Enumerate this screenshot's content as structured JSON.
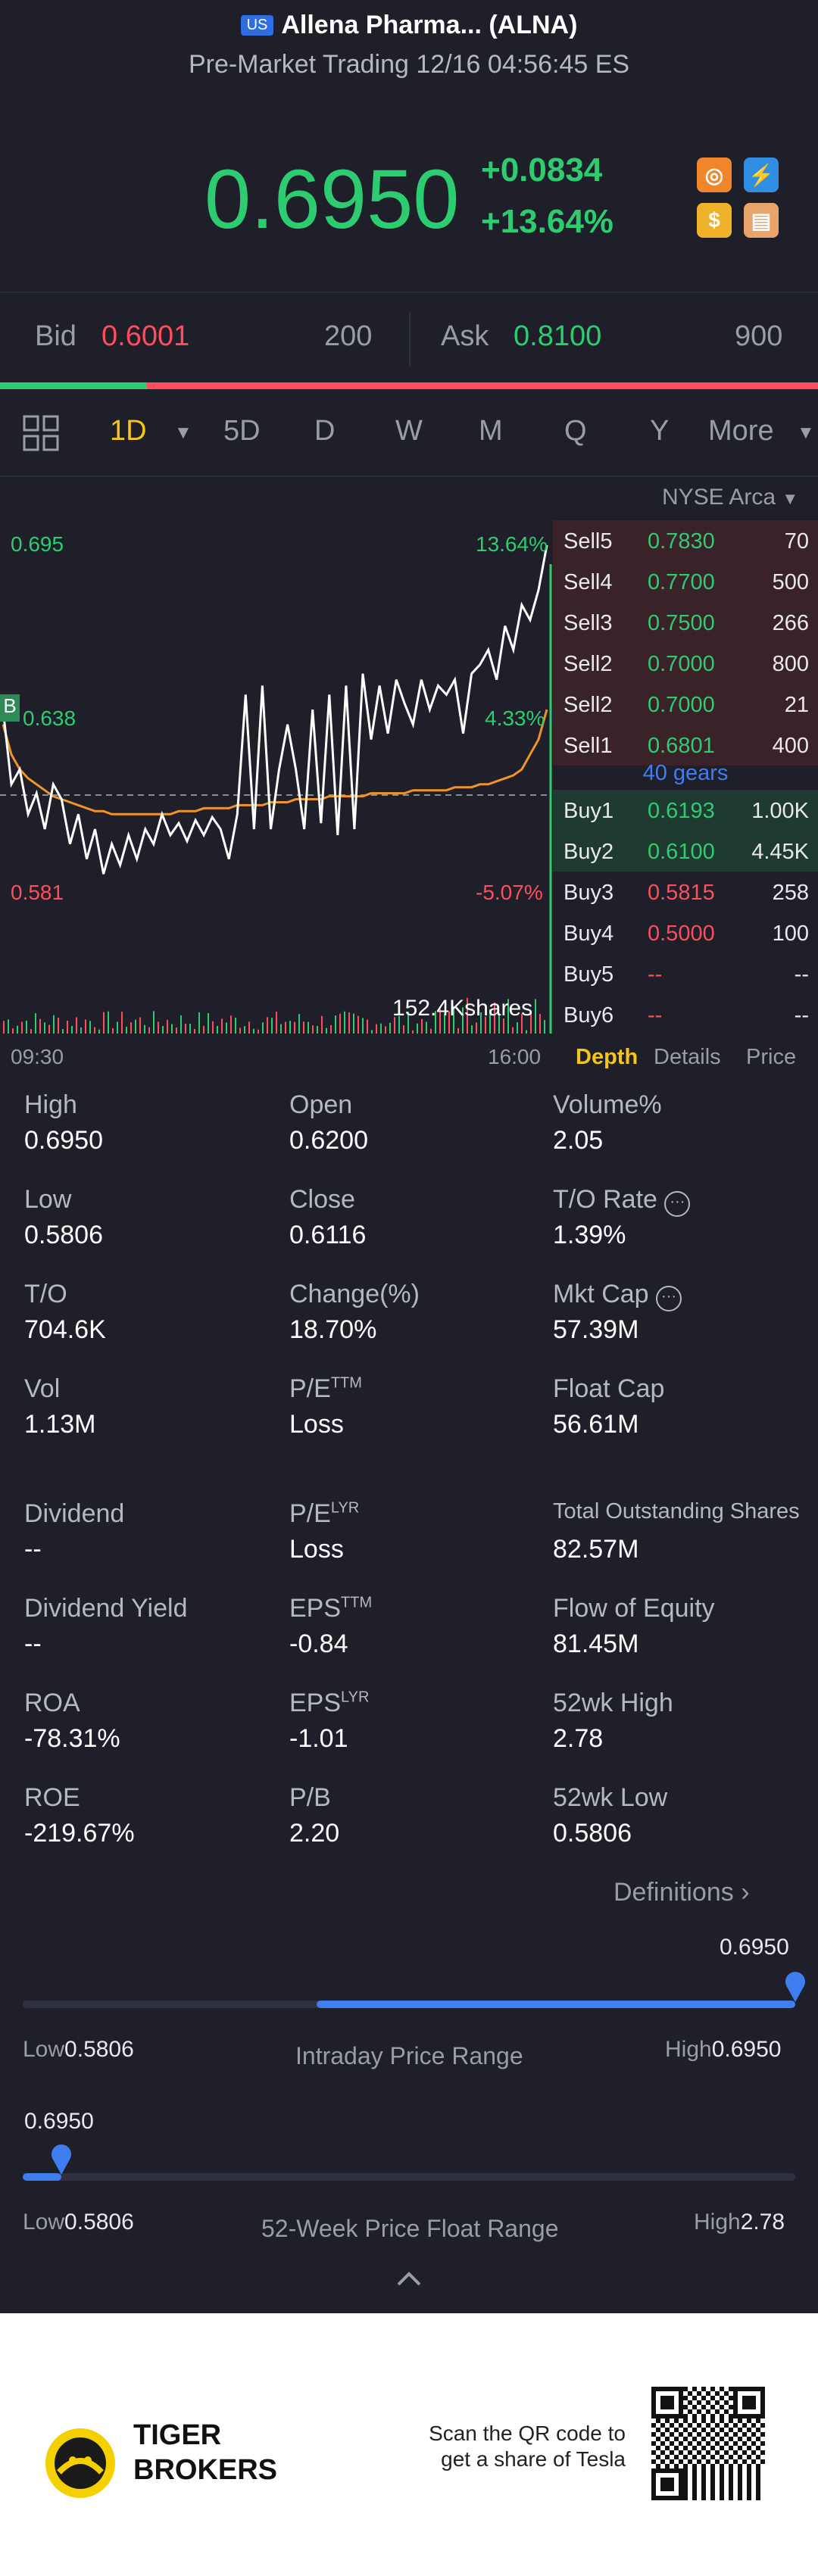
{
  "header": {
    "market_badge": "US",
    "title": "Allena Pharma... (ALNA)",
    "subtitle": "Pre-Market Trading 12/16 04:56:45 ES"
  },
  "quote": {
    "price": "0.6950",
    "change": "+0.0834",
    "change_pct": "+13.64%"
  },
  "bidask": {
    "bid_label": "Bid",
    "bid_price": "0.6001",
    "bid_size": "200",
    "ask_label": "Ask",
    "ask_price": "0.8100",
    "ask_size": "900",
    "bid_ratio": 0.18
  },
  "tabs": [
    "1D",
    "5D",
    "D",
    "W",
    "M",
    "Q",
    "Y",
    "More"
  ],
  "exchange": "NYSE Arca",
  "chart": {
    "price_high": "0.695",
    "pct_high": "13.64%",
    "price_mid": "0.638",
    "pct_mid": "4.33%",
    "price_low": "0.581",
    "pct_low": "-5.07%",
    "time_start": "09:30",
    "time_end": "16:00",
    "volume_label": "152.4Kshares",
    "marker": "B",
    "price_series": [
      0.64,
      0.615,
      0.62,
      0.605,
      0.612,
      0.6,
      0.615,
      0.61,
      0.595,
      0.605,
      0.59,
      0.6,
      0.585,
      0.595,
      0.588,
      0.598,
      0.59,
      0.6,
      0.595,
      0.605,
      0.598,
      0.602,
      0.596,
      0.603,
      0.598,
      0.604,
      0.6,
      0.59,
      0.605,
      0.645,
      0.6,
      0.648,
      0.6,
      0.62,
      0.635,
      0.62,
      0.6,
      0.64,
      0.602,
      0.645,
      0.598,
      0.648,
      0.6,
      0.652,
      0.63,
      0.648,
      0.632,
      0.65,
      0.642,
      0.635,
      0.65,
      0.64,
      0.648,
      0.645,
      0.65,
      0.632,
      0.652,
      0.655,
      0.66,
      0.65,
      0.668,
      0.66,
      0.675,
      0.67,
      0.68,
      0.695
    ],
    "avg_series": [
      0.635,
      0.625,
      0.62,
      0.617,
      0.615,
      0.613,
      0.611,
      0.61,
      0.609,
      0.608,
      0.607,
      0.606,
      0.606,
      0.605,
      0.605,
      0.605,
      0.605,
      0.605,
      0.605,
      0.605,
      0.605,
      0.606,
      0.606,
      0.606,
      0.607,
      0.607,
      0.607,
      0.607,
      0.608,
      0.608,
      0.608,
      0.608,
      0.609,
      0.609,
      0.609,
      0.61,
      0.61,
      0.61,
      0.61,
      0.611,
      0.611,
      0.611,
      0.611,
      0.611,
      0.612,
      0.612,
      0.612,
      0.612,
      0.612,
      0.613,
      0.613,
      0.613,
      0.613,
      0.613,
      0.614,
      0.614,
      0.614,
      0.615,
      0.615,
      0.616,
      0.617,
      0.618,
      0.62,
      0.625,
      0.63,
      0.64
    ]
  },
  "orderbook": {
    "sells": [
      {
        "label": "Sell5",
        "price": "0.7830",
        "size": "70"
      },
      {
        "label": "Sell4",
        "price": "0.7700",
        "size": "500"
      },
      {
        "label": "Sell3",
        "price": "0.7500",
        "size": "266"
      },
      {
        "label": "Sell2",
        "price": "0.7000",
        "size": "800"
      },
      {
        "label": "Sell2",
        "price": "0.7000",
        "size": "21"
      },
      {
        "label": "Sell1",
        "price": "0.6801",
        "size": "400"
      }
    ],
    "gears": "40 gears",
    "buys": [
      {
        "label": "Buy1",
        "price": "0.6193",
        "size": "1.00K"
      },
      {
        "label": "Buy2",
        "price": "0.6100",
        "size": "4.45K"
      },
      {
        "label": "Buy3",
        "price": "0.5815",
        "size": "258"
      },
      {
        "label": "Buy4",
        "price": "0.5000",
        "size": "100"
      },
      {
        "label": "Buy5",
        "price": "--",
        "size": "--"
      },
      {
        "label": "Buy6",
        "price": "--",
        "size": "--"
      }
    ],
    "tabs": [
      "Depth",
      "Details",
      "Price"
    ]
  },
  "stats": [
    [
      {
        "label": "High",
        "value": "0.6950"
      },
      {
        "label": "Open",
        "value": "0.6200"
      },
      {
        "label": "Volume%",
        "value": "2.05"
      }
    ],
    [
      {
        "label": "Low",
        "value": "0.5806"
      },
      {
        "label": "Close",
        "value": "0.6116"
      },
      {
        "label": "T/O Rate",
        "value": "1.39%"
      }
    ],
    [
      {
        "label": "T/O",
        "value": "704.6K"
      },
      {
        "label": "Change(%)",
        "value": "18.70%"
      },
      {
        "label": "Mkt Cap",
        "value": "57.39M"
      }
    ],
    [
      {
        "label": "Vol",
        "value": "1.13M"
      },
      {
        "label": "P/E",
        "sup": "TTM",
        "value": "Loss"
      },
      {
        "label": "Float Cap",
        "value": "56.61M"
      }
    ],
    [
      {
        "label": "Dividend",
        "value": "--"
      },
      {
        "label": "P/E",
        "sup": "LYR",
        "value": "Loss"
      },
      {
        "label": "Total Outstanding Shares",
        "value": "82.57M"
      }
    ],
    [
      {
        "label": "Dividend Yield",
        "value": "--"
      },
      {
        "label": "EPS",
        "sup": "TTM",
        "value": "-0.84"
      },
      {
        "label": "Flow of Equity",
        "value": "81.45M"
      }
    ],
    [
      {
        "label": "ROA",
        "value": "-78.31%"
      },
      {
        "label": "EPS",
        "sup": "LYR",
        "value": "-1.01"
      },
      {
        "label": "52wk High",
        "value": "2.78"
      }
    ],
    [
      {
        "label": "ROE",
        "value": "-219.67%"
      },
      {
        "label": "P/B",
        "value": "2.20"
      },
      {
        "label": "52wk Low",
        "value": "0.5806"
      }
    ]
  ],
  "definitions_label": "Definitions",
  "intraday": {
    "current": "0.6950",
    "low_label": "Low",
    "low": "0.5806",
    "high_label": "High",
    "high": "0.6950",
    "title": "Intraday Price Range",
    "position": 1.0
  },
  "week52": {
    "current": "0.6950",
    "low_label": "Low",
    "low": "0.5806",
    "high_label": "High",
    "high": "2.78",
    "title": "52-Week Price Float Range",
    "position": 0.05
  },
  "footer": {
    "brand_line1": "TIGER",
    "brand_line2": "BROKERS",
    "scan_line1": "Scan the QR code to",
    "scan_line2": "get a share of Tesla"
  },
  "colors": {
    "up": "#2ecc71",
    "down": "#ff4d5e",
    "accent": "#3f7ef0",
    "bg": "#1e1f29",
    "avg_line": "#f0932b"
  }
}
